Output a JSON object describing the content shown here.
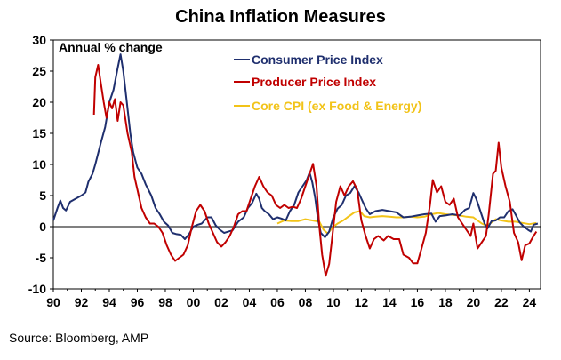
{
  "chart_data": {
    "type": "line",
    "title": "China Inflation Measures",
    "annotation": "Annual % change",
    "source": "Source: Bloomberg, AMP",
    "xlim": [
      1990,
      2024.8
    ],
    "ylim": [
      -10,
      30
    ],
    "y_ticks": [
      "30",
      "25",
      "20",
      "15",
      "10",
      "5",
      "0",
      "-5",
      "-10"
    ],
    "x_ticks": [
      "90",
      "92",
      "94",
      "96",
      "98",
      "00",
      "02",
      "04",
      "06",
      "08",
      "10",
      "12",
      "14",
      "16",
      "18",
      "20",
      "22",
      "24"
    ],
    "legend_position": "top-center",
    "grid": false,
    "series": [
      {
        "name": "Consumer Price Index",
        "color": "#1f2f6e",
        "points": [
          [
            1990.0,
            1.0
          ],
          [
            1990.3,
            3.0
          ],
          [
            1990.5,
            4.2
          ],
          [
            1990.7,
            3.0
          ],
          [
            1990.9,
            2.6
          ],
          [
            1991.2,
            4.0
          ],
          [
            1991.6,
            4.5
          ],
          [
            1992.0,
            5.0
          ],
          [
            1992.3,
            5.5
          ],
          [
            1992.5,
            7.2
          ],
          [
            1992.8,
            8.5
          ],
          [
            1993.0,
            10.0
          ],
          [
            1993.4,
            13.5
          ],
          [
            1993.7,
            16.0
          ],
          [
            1994.0,
            20.0
          ],
          [
            1994.3,
            22.0
          ],
          [
            1994.6,
            25.5
          ],
          [
            1994.8,
            27.7
          ],
          [
            1995.0,
            25.0
          ],
          [
            1995.2,
            21.0
          ],
          [
            1995.5,
            15.0
          ],
          [
            1995.7,
            12.0
          ],
          [
            1996.0,
            9.5
          ],
          [
            1996.3,
            8.5
          ],
          [
            1996.6,
            6.8
          ],
          [
            1997.0,
            5.0
          ],
          [
            1997.3,
            3.0
          ],
          [
            1997.6,
            2.0
          ],
          [
            1997.9,
            0.8
          ],
          [
            1998.2,
            0.2
          ],
          [
            1998.5,
            -1.0
          ],
          [
            1998.8,
            -1.2
          ],
          [
            1999.1,
            -1.3
          ],
          [
            1999.4,
            -2.0
          ],
          [
            1999.7,
            -1.2
          ],
          [
            2000.0,
            0.0
          ],
          [
            2000.3,
            0.3
          ],
          [
            2000.6,
            0.5
          ],
          [
            2001.0,
            1.5
          ],
          [
            2001.3,
            1.5
          ],
          [
            2001.6,
            0.2
          ],
          [
            2001.9,
            -0.5
          ],
          [
            2002.2,
            -1.0
          ],
          [
            2002.5,
            -0.8
          ],
          [
            2002.8,
            -0.6
          ],
          [
            2003.2,
            0.8
          ],
          [
            2003.6,
            1.5
          ],
          [
            2003.9,
            3.0
          ],
          [
            2004.2,
            3.8
          ],
          [
            2004.5,
            5.3
          ],
          [
            2004.7,
            4.5
          ],
          [
            2004.9,
            3.0
          ],
          [
            2005.1,
            2.5
          ],
          [
            2005.4,
            2.0
          ],
          [
            2005.7,
            1.2
          ],
          [
            2006.0,
            1.5
          ],
          [
            2006.3,
            1.3
          ],
          [
            2006.6,
            1.0
          ],
          [
            2006.9,
            2.5
          ],
          [
            2007.2,
            3.5
          ],
          [
            2007.5,
            5.5
          ],
          [
            2007.8,
            6.5
          ],
          [
            2008.1,
            7.5
          ],
          [
            2008.3,
            8.7
          ],
          [
            2008.5,
            7.1
          ],
          [
            2008.7,
            4.6
          ],
          [
            2008.9,
            1.2
          ],
          [
            2009.1,
            -1.0
          ],
          [
            2009.4,
            -1.7
          ],
          [
            2009.7,
            -0.8
          ],
          [
            2010.0,
            1.5
          ],
          [
            2010.3,
            2.9
          ],
          [
            2010.6,
            3.5
          ],
          [
            2010.9,
            5.0
          ],
          [
            2011.2,
            5.4
          ],
          [
            2011.5,
            6.5
          ],
          [
            2011.8,
            5.5
          ],
          [
            2012.0,
            4.5
          ],
          [
            2012.3,
            3.0
          ],
          [
            2012.6,
            2.0
          ],
          [
            2013.0,
            2.5
          ],
          [
            2013.5,
            2.7
          ],
          [
            2014.0,
            2.5
          ],
          [
            2014.5,
            2.3
          ],
          [
            2015.0,
            1.5
          ],
          [
            2015.5,
            1.6
          ],
          [
            2016.0,
            1.8
          ],
          [
            2016.5,
            2.0
          ],
          [
            2017.0,
            2.1
          ],
          [
            2017.3,
            0.8
          ],
          [
            2017.6,
            1.7
          ],
          [
            2018.0,
            1.8
          ],
          [
            2018.5,
            2.0
          ],
          [
            2019.0,
            1.8
          ],
          [
            2019.4,
            2.7
          ],
          [
            2019.7,
            3.0
          ],
          [
            2020.0,
            5.4
          ],
          [
            2020.2,
            4.5
          ],
          [
            2020.5,
            2.5
          ],
          [
            2020.8,
            0.5
          ],
          [
            2021.0,
            -0.3
          ],
          [
            2021.3,
            0.9
          ],
          [
            2021.6,
            1.0
          ],
          [
            2021.9,
            1.5
          ],
          [
            2022.2,
            1.5
          ],
          [
            2022.5,
            2.5
          ],
          [
            2022.8,
            2.8
          ],
          [
            2023.0,
            2.0
          ],
          [
            2023.3,
            0.7
          ],
          [
            2023.6,
            0.0
          ],
          [
            2023.9,
            -0.5
          ],
          [
            2024.1,
            -0.8
          ],
          [
            2024.3,
            0.3
          ],
          [
            2024.6,
            0.5
          ]
        ]
      },
      {
        "name": "Producer Price Index",
        "color": "#c00000",
        "points": [
          [
            1992.9,
            18.0
          ],
          [
            1993.0,
            24.0
          ],
          [
            1993.2,
            26.0
          ],
          [
            1993.4,
            23.0
          ],
          [
            1993.6,
            20.0
          ],
          [
            1993.8,
            17.5
          ],
          [
            1994.0,
            20.0
          ],
          [
            1994.2,
            19.0
          ],
          [
            1994.4,
            20.5
          ],
          [
            1994.6,
            17.0
          ],
          [
            1994.8,
            20.0
          ],
          [
            1995.0,
            19.5
          ],
          [
            1995.3,
            15.0
          ],
          [
            1995.6,
            12.0
          ],
          [
            1995.8,
            8.0
          ],
          [
            1996.0,
            6.0
          ],
          [
            1996.3,
            3.0
          ],
          [
            1996.6,
            1.5
          ],
          [
            1996.9,
            0.5
          ],
          [
            1997.2,
            0.5
          ],
          [
            1997.5,
            0.0
          ],
          [
            1997.8,
            -1.0
          ],
          [
            1998.1,
            -3.0
          ],
          [
            1998.4,
            -4.5
          ],
          [
            1998.7,
            -5.5
          ],
          [
            1999.0,
            -5.0
          ],
          [
            1999.3,
            -4.5
          ],
          [
            1999.6,
            -3.0
          ],
          [
            1999.9,
            0.0
          ],
          [
            2000.2,
            2.5
          ],
          [
            2000.5,
            3.5
          ],
          [
            2000.8,
            2.5
          ],
          [
            2001.1,
            0.5
          ],
          [
            2001.4,
            -1.0
          ],
          [
            2001.7,
            -2.5
          ],
          [
            2002.0,
            -3.2
          ],
          [
            2002.3,
            -2.5
          ],
          [
            2002.6,
            -1.5
          ],
          [
            2002.9,
            0.0
          ],
          [
            2003.2,
            2.0
          ],
          [
            2003.5,
            2.5
          ],
          [
            2003.8,
            2.5
          ],
          [
            2004.1,
            4.5
          ],
          [
            2004.4,
            6.5
          ],
          [
            2004.7,
            8.0
          ],
          [
            2005.0,
            6.5
          ],
          [
            2005.3,
            5.5
          ],
          [
            2005.6,
            5.0
          ],
          [
            2005.9,
            3.5
          ],
          [
            2006.2,
            3.0
          ],
          [
            2006.5,
            3.5
          ],
          [
            2006.8,
            3.0
          ],
          [
            2007.1,
            3.2
          ],
          [
            2007.4,
            3.0
          ],
          [
            2007.7,
            4.5
          ],
          [
            2008.0,
            6.5
          ],
          [
            2008.3,
            8.5
          ],
          [
            2008.55,
            10.1
          ],
          [
            2008.8,
            6.5
          ],
          [
            2009.0,
            0.0
          ],
          [
            2009.2,
            -4.5
          ],
          [
            2009.45,
            -7.9
          ],
          [
            2009.7,
            -6.0
          ],
          [
            2009.9,
            -2.0
          ],
          [
            2010.2,
            4.0
          ],
          [
            2010.5,
            6.5
          ],
          [
            2010.8,
            5.0
          ],
          [
            2011.1,
            6.5
          ],
          [
            2011.4,
            7.3
          ],
          [
            2011.7,
            6.0
          ],
          [
            2012.0,
            1.0
          ],
          [
            2012.3,
            -1.5
          ],
          [
            2012.6,
            -3.5
          ],
          [
            2012.9,
            -2.0
          ],
          [
            2013.2,
            -1.5
          ],
          [
            2013.6,
            -2.2
          ],
          [
            2013.9,
            -1.5
          ],
          [
            2014.3,
            -2.0
          ],
          [
            2014.7,
            -2.0
          ],
          [
            2015.0,
            -4.5
          ],
          [
            2015.4,
            -5.0
          ],
          [
            2015.7,
            -5.9
          ],
          [
            2016.0,
            -5.9
          ],
          [
            2016.3,
            -3.5
          ],
          [
            2016.6,
            -1.0
          ],
          [
            2016.9,
            3.5
          ],
          [
            2017.1,
            7.5
          ],
          [
            2017.4,
            5.5
          ],
          [
            2017.7,
            6.5
          ],
          [
            2018.0,
            4.0
          ],
          [
            2018.3,
            3.5
          ],
          [
            2018.6,
            4.5
          ],
          [
            2018.9,
            1.5
          ],
          [
            2019.2,
            0.5
          ],
          [
            2019.5,
            -0.5
          ],
          [
            2019.8,
            -1.5
          ],
          [
            2020.0,
            0.5
          ],
          [
            2020.3,
            -3.5
          ],
          [
            2020.6,
            -2.5
          ],
          [
            2020.9,
            -1.5
          ],
          [
            2021.1,
            2.0
          ],
          [
            2021.4,
            8.5
          ],
          [
            2021.6,
            9.0
          ],
          [
            2021.8,
            13.5
          ],
          [
            2022.0,
            9.5
          ],
          [
            2022.3,
            6.5
          ],
          [
            2022.6,
            4.0
          ],
          [
            2022.9,
            -1.0
          ],
          [
            2023.2,
            -2.5
          ],
          [
            2023.45,
            -5.4
          ],
          [
            2023.7,
            -3.0
          ],
          [
            2024.0,
            -2.7
          ],
          [
            2024.3,
            -1.5
          ],
          [
            2024.5,
            -0.8
          ]
        ]
      },
      {
        "name": "Core CPI (ex Food & Energy)",
        "color": "#f2c318",
        "points": [
          [
            2006.0,
            0.5
          ],
          [
            2006.5,
            1.0
          ],
          [
            2007.0,
            0.9
          ],
          [
            2007.5,
            0.9
          ],
          [
            2008.0,
            1.2
          ],
          [
            2008.5,
            1.0
          ],
          [
            2009.0,
            0.8
          ],
          [
            2009.3,
            -0.5
          ],
          [
            2009.6,
            -1.1
          ],
          [
            2010.0,
            0.0
          ],
          [
            2010.3,
            0.5
          ],
          [
            2010.7,
            1.0
          ],
          [
            2011.0,
            1.5
          ],
          [
            2011.5,
            2.3
          ],
          [
            2011.9,
            2.5
          ],
          [
            2012.2,
            1.7
          ],
          [
            2012.6,
            1.5
          ],
          [
            2013.0,
            1.6
          ],
          [
            2013.5,
            1.7
          ],
          [
            2014.0,
            1.6
          ],
          [
            2014.5,
            1.5
          ],
          [
            2015.0,
            1.5
          ],
          [
            2015.5,
            1.6
          ],
          [
            2016.0,
            1.5
          ],
          [
            2016.5,
            1.6
          ],
          [
            2017.0,
            2.0
          ],
          [
            2017.5,
            2.2
          ],
          [
            2018.0,
            2.0
          ],
          [
            2018.5,
            1.9
          ],
          [
            2019.0,
            1.8
          ],
          [
            2019.5,
            1.6
          ],
          [
            2020.0,
            1.5
          ],
          [
            2020.3,
            1.0
          ],
          [
            2020.6,
            0.5
          ],
          [
            2020.9,
            0.2
          ],
          [
            2021.2,
            0.5
          ],
          [
            2021.6,
            1.2
          ],
          [
            2022.0,
            1.0
          ],
          [
            2022.5,
            0.8
          ],
          [
            2023.0,
            0.8
          ],
          [
            2023.5,
            0.6
          ],
          [
            2024.0,
            0.4
          ],
          [
            2024.5,
            0.6
          ]
        ]
      }
    ]
  }
}
